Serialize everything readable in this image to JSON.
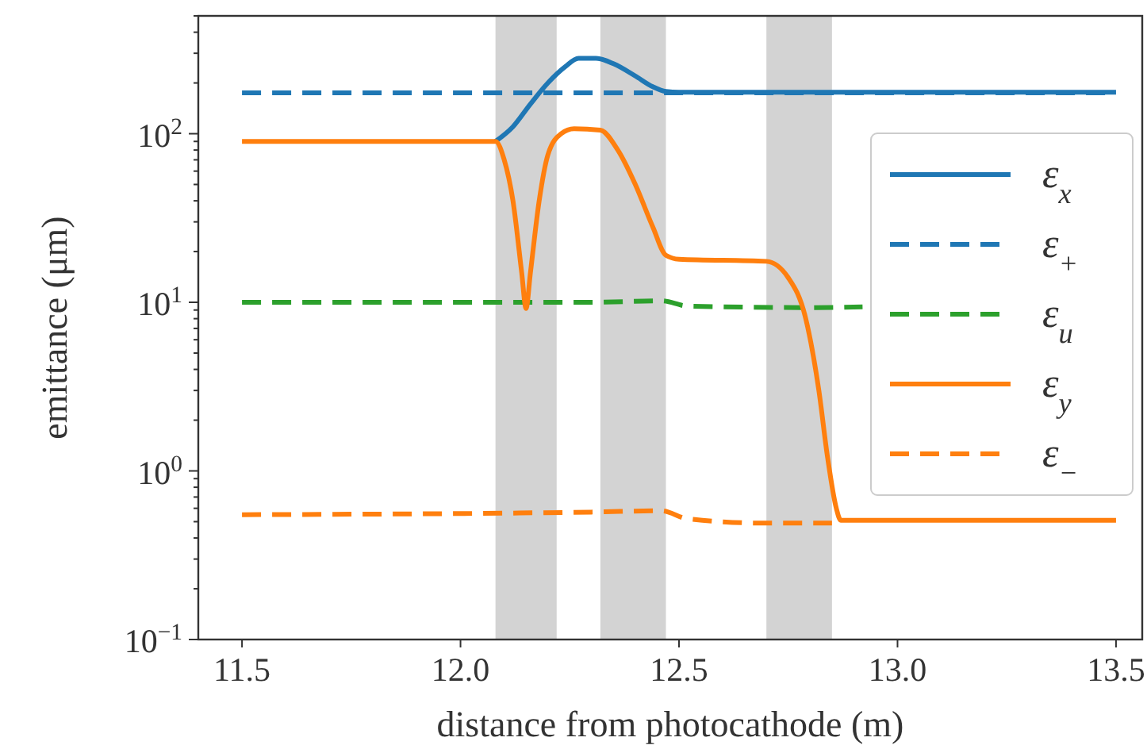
{
  "chart_data": {
    "type": "line",
    "xlabel": "distance from photocathode (m)",
    "ylabel": "emittance (μm)",
    "log": "y",
    "grid": false,
    "legend": "right",
    "xlim": [
      11.4,
      13.56
    ],
    "xticks": [
      {
        "value": 11.5,
        "label": "11.5"
      },
      {
        "value": 12,
        "label": "12.0"
      },
      {
        "value": 12.5,
        "label": "12.5"
      },
      {
        "value": 13,
        "label": "13.0"
      },
      {
        "value": 13.5,
        "label": "13.5"
      }
    ],
    "ylim": [
      0.1,
      500
    ],
    "yticks": [
      {
        "value": 0.1,
        "label": "10$^{−1}$"
      },
      {
        "value": 1,
        "label": "10$^{0}$"
      },
      {
        "value": 10,
        "label": "10$^{1}$"
      },
      {
        "value": 100,
        "label": "10$^{2}$"
      }
    ],
    "bands": [
      {
        "axis": "x",
        "from": 12.08,
        "to": 12.22,
        "color": "#d3d3d3"
      },
      {
        "axis": "x",
        "from": 12.32,
        "to": 12.47,
        "color": "#d3d3d3"
      },
      {
        "axis": "x",
        "from": 12.7,
        "to": 12.85,
        "color": "#d3d3d3"
      }
    ],
    "series": [
      {
        "name": "ε$_{x}$",
        "color": "#1f77b4",
        "line_style": "solid",
        "x": [
          12.08,
          12.12,
          12.16,
          12.2,
          12.24,
          12.27,
          12.31,
          12.35,
          12.4,
          12.44,
          12.47,
          12.5,
          13.5
        ],
        "values": [
          90,
          110,
          150,
          200,
          250,
          280,
          280,
          260,
          220,
          190,
          178,
          176,
          176
        ]
      },
      {
        "name": "ε$_{+}$",
        "color": "#1f77b4",
        "line_style": "dashed",
        "x": [
          11.5,
          12.47,
          13.5
        ],
        "values": [
          175,
          175,
          175
        ]
      },
      {
        "name": "ε$_{u}$",
        "color": "#2ca02c",
        "line_style": "dashed",
        "x": [
          11.5,
          12.3,
          12.46,
          12.52,
          12.8,
          12.92
        ],
        "values": [
          10,
          10,
          10.2,
          9.5,
          9.3,
          9.4
        ]
      },
      {
        "name": "ε$_{y}$",
        "color": "#ff7f0e",
        "line_style": "solid",
        "x": [
          11.5,
          12.08,
          12.1,
          12.12,
          12.14,
          12.15,
          12.16,
          12.18,
          12.2,
          12.23,
          12.26,
          12.32,
          12.36,
          12.4,
          12.44,
          12.47,
          12.5,
          12.7,
          12.75,
          12.79,
          12.82,
          12.84,
          12.86,
          12.87,
          13.5
        ],
        "values": [
          90,
          90,
          70,
          40,
          15,
          9.2,
          15,
          40,
          75,
          100,
          107,
          105,
          80,
          50,
          28,
          19,
          18,
          17.5,
          14,
          8,
          3,
          1.2,
          0.6,
          0.51,
          0.51
        ]
      },
      {
        "name": "ε$_{−}$",
        "color": "#ff7f0e",
        "line_style": "dashed",
        "x": [
          11.5,
          12.3,
          12.46,
          12.52,
          12.7,
          12.85
        ],
        "values": [
          0.55,
          0.57,
          0.58,
          0.52,
          0.49,
          0.49
        ]
      }
    ]
  }
}
